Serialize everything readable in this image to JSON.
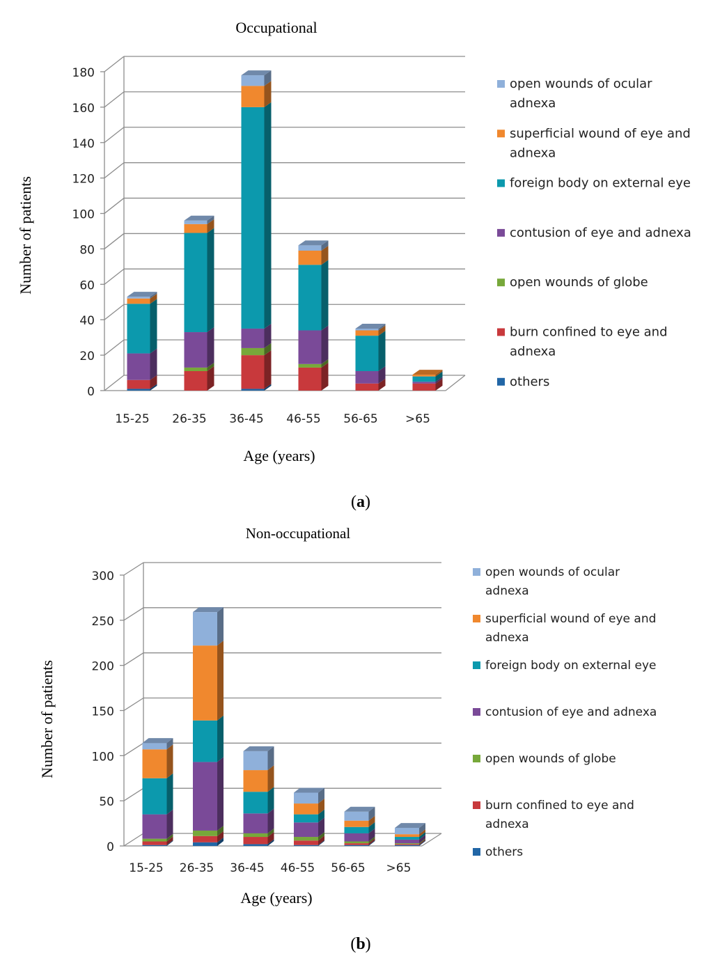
{
  "colors": {
    "others": "#2166a6",
    "burn confined to eye and adnexa": "#c8393c",
    "open wounds of globe": "#77a83a",
    "contusion of eye and adnexa": "#7a4a98",
    "foreign body on external eye": "#0c99ad",
    "superficial wound of eye and adnexa": "#f0882e",
    "open wounds of ocular adnexa": "#8fb0da"
  },
  "chart_data": [
    {
      "type": "bar",
      "stacked": true,
      "title": "Occupational",
      "xlabel": "Age (years)",
      "ylabel": "Number of patients",
      "panel_label_letter": "a",
      "categories": [
        "15-25",
        "26-35",
        "36-45",
        "46-55",
        "56-65",
        ">65"
      ],
      "ylim": [
        0,
        180
      ],
      "yticks": [
        0,
        20,
        40,
        60,
        80,
        100,
        120,
        140,
        160,
        180
      ],
      "legend_position": "right",
      "legend": [
        [
          "open wounds of ocular",
          "adnexa"
        ],
        [
          "superficial wound of eye and",
          "adnexa"
        ],
        [
          "foreign body on external eye"
        ],
        [
          "contusion of eye and adnexa"
        ],
        [
          "open wounds of globe"
        ],
        [
          "burn confined to eye and",
          "adnexa"
        ],
        [
          "others"
        ]
      ],
      "series": [
        {
          "name": "others",
          "values": [
            1,
            0,
            1,
            0,
            0,
            0
          ]
        },
        {
          "name": "burn confined to eye and adnexa",
          "values": [
            5,
            11,
            19,
            13,
            4,
            4
          ]
        },
        {
          "name": "open wounds of globe",
          "values": [
            0,
            2,
            4,
            2,
            0,
            0
          ]
        },
        {
          "name": "contusion of eye and adnexa",
          "values": [
            15,
            20,
            11,
            19,
            7,
            1
          ]
        },
        {
          "name": "foreign body on external eye",
          "values": [
            28,
            56,
            125,
            37,
            20,
            3
          ]
        },
        {
          "name": "superficial wound of eye and adnexa",
          "values": [
            3,
            5,
            12,
            8,
            3,
            1
          ]
        },
        {
          "name": "open wounds of ocular adnexa",
          "values": [
            1,
            2,
            6,
            3,
            1,
            0
          ]
        }
      ]
    },
    {
      "type": "bar",
      "stacked": true,
      "title": "Non-occupational",
      "xlabel": "Age (years)",
      "ylabel": "Number of patients",
      "panel_label_letter": "b",
      "categories": [
        "15-25",
        "26-35",
        "36-45",
        "46-55",
        "56-65",
        ">65"
      ],
      "ylim": [
        0,
        300
      ],
      "yticks": [
        0,
        50,
        100,
        150,
        200,
        250,
        300
      ],
      "legend_position": "right",
      "legend": [
        [
          "open wounds of ocular",
          "adnexa"
        ],
        [
          "superficial wound of eye and",
          "adnexa"
        ],
        [
          "foreign body on external eye"
        ],
        [
          "contusion of eye and adnexa"
        ],
        [
          "open wounds of globe"
        ],
        [
          "burn confined to eye and",
          "adnexa"
        ],
        [
          "others"
        ]
      ],
      "series": [
        {
          "name": "others",
          "values": [
            1,
            4,
            2,
            1,
            1,
            1
          ]
        },
        {
          "name": "burn confined to eye and adnexa",
          "values": [
            4,
            7,
            8,
            5,
            2,
            1
          ]
        },
        {
          "name": "open wounds of globe",
          "values": [
            3,
            6,
            4,
            4,
            2,
            1
          ]
        },
        {
          "name": "contusion of eye and adnexa",
          "values": [
            27,
            76,
            22,
            16,
            9,
            4
          ]
        },
        {
          "name": "foreign body on external eye",
          "values": [
            40,
            46,
            24,
            9,
            7,
            3
          ]
        },
        {
          "name": "superficial wound of eye and adnexa",
          "values": [
            32,
            83,
            24,
            12,
            7,
            3
          ]
        },
        {
          "name": "open wounds of ocular adnexa",
          "values": [
            7,
            37,
            21,
            12,
            10,
            7
          ]
        }
      ]
    }
  ]
}
